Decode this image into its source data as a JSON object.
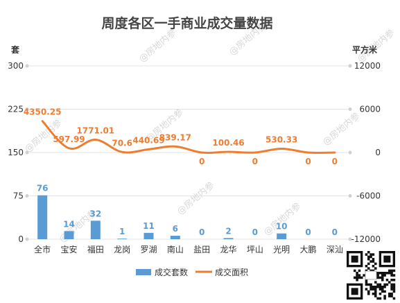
{
  "watermark": "@房地内参",
  "chart_data": {
    "type": "bar",
    "title": "周度各区一手商业成交量数据",
    "categories": [
      "全市",
      "宝安",
      "福田",
      "龙岗",
      "罗湖",
      "南山",
      "盐田",
      "龙华",
      "坪山",
      "光明",
      "大鹏",
      "深汕"
    ],
    "left_axis": {
      "unit": "套",
      "ticks": [
        "0",
        "75",
        "150",
        "225",
        "300"
      ],
      "range": [
        0,
        300
      ]
    },
    "right_axis": {
      "unit": "平方米",
      "ticks": [
        "-12000",
        "-6000",
        "0",
        "6000",
        "12000"
      ],
      "range": [
        -12000,
        12000
      ]
    },
    "series": [
      {
        "name": "成交套数",
        "kind": "bar",
        "axis": "left",
        "color": "#5b9bd5",
        "values": [
          76,
          14,
          32,
          1,
          11,
          6,
          0,
          2,
          0,
          10,
          0,
          0
        ],
        "labels": [
          "76",
          "14",
          "32",
          "1",
          "11",
          "6",
          "0",
          "2",
          "0",
          "10",
          "0",
          "0"
        ]
      },
      {
        "name": "成交面积",
        "kind": "line",
        "axis": "right",
        "color": "#ed7d31",
        "values": [
          4350.25,
          597.99,
          1771.01,
          70.6,
          440.69,
          839.17,
          0,
          100.46,
          0,
          530.33,
          0,
          0
        ],
        "labels": [
          "4350.25",
          "597.99",
          "1771.01",
          "70.6",
          "440.69",
          "839.17",
          "0",
          "100.46",
          "0",
          "530.33",
          "0",
          "0"
        ]
      }
    ],
    "legend": "bottom",
    "grid": true
  }
}
